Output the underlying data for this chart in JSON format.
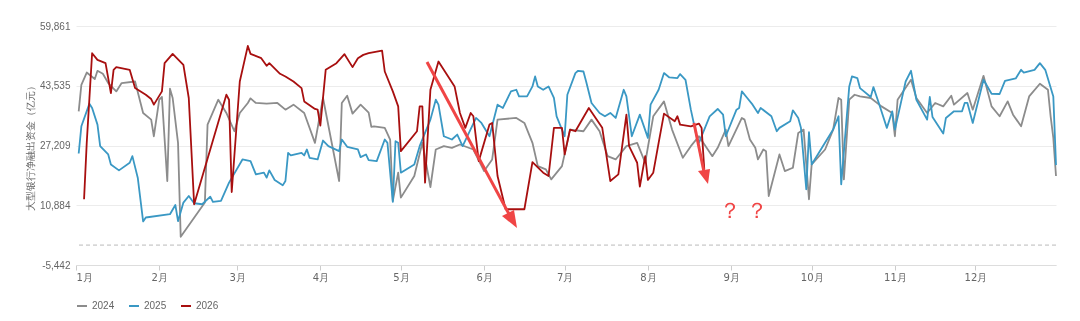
{
  "chart_data": {
    "type": "line",
    "ylabel": "大型银行净融出资金（亿元）",
    "legend": "bottom",
    "grid": "y",
    "line_style": "solid",
    "ylim": [
      -5442,
      59861
    ],
    "yticks": [
      {
        "value": -5442,
        "label": "-5,442"
      },
      {
        "value": 10884,
        "label": "10,884"
      },
      {
        "value": 27209,
        "label": "27,209"
      },
      {
        "value": 43535,
        "label": "43,535"
      },
      {
        "value": 59861,
        "label": "59,861"
      }
    ],
    "xlim": [
      "--01-01",
      "--12-31"
    ],
    "xticks": [
      {
        "value": "--01-01",
        "label": "1月"
      },
      {
        "value": "--02-01",
        "label": "2月"
      },
      {
        "value": "--03-01",
        "label": "3月"
      },
      {
        "value": "--04-01",
        "label": "4月"
      },
      {
        "value": "--05-01",
        "label": "5月"
      },
      {
        "value": "--06-01",
        "label": "6月"
      },
      {
        "value": "--07-01",
        "label": "7月"
      },
      {
        "value": "--08-01",
        "label": "8月"
      },
      {
        "value": "--09-01",
        "label": "9月"
      },
      {
        "value": "--10-01",
        "label": "10月"
      },
      {
        "value": "--11-01",
        "label": "11月"
      },
      {
        "value": "--12-01",
        "label": "12月"
      }
    ],
    "ref_lines": [
      {
        "axis": "y",
        "value": 0,
        "color": "#bbbbbb",
        "line_style": "dashed"
      }
    ],
    "annotations": [
      "？",
      "？"
    ],
    "series": [
      {
        "name": "2024",
        "color": "#8c8c8c",
        "x": [
          "--01-02",
          "--01-03",
          "--01-05",
          "--01-08",
          "--01-09",
          "--01-11",
          "--01-13",
          "--01-16",
          "--01-18",
          "--01-23",
          "--01-26",
          "--01-29",
          "--01-30",
          "--02-01",
          "--02-02",
          "--02-04",
          "--02-05",
          "--02-06",
          "--02-08",
          "--02-09",
          "--02-18",
          "--02-19",
          "--02-23",
          "--02-26",
          "--02-29",
          "--03-02",
          "--03-05",
          "--03-06",
          "--03-08",
          "--03-12",
          "--03-16",
          "--03-19",
          "--03-22",
          "--03-26",
          "--03-30",
          "--04-02",
          "--04-08",
          "--04-09",
          "--04-11",
          "--04-13",
          "--04-16",
          "--04-19",
          "--04-20",
          "--04-21",
          "--04-25",
          "--04-27",
          "--04-28",
          "--04-30",
          "--05-01",
          "--05-06",
          "--05-09",
          "--05-12",
          "--05-14",
          "--05-17",
          "--05-20",
          "--05-23",
          "--05-28",
          "--06-01",
          "--06-04",
          "--06-06",
          "--06-13",
          "--06-16",
          "--06-19",
          "--06-21",
          "--06-24",
          "--06-26",
          "--06-30",
          "--07-03",
          "--07-08",
          "--07-11",
          "--07-14",
          "--07-17",
          "--07-20",
          "--07-24",
          "--07-28",
          "--07-31",
          "--08-03",
          "--08-07",
          "--08-10",
          "--08-14",
          "--08-17",
          "--08-20",
          "--08-25",
          "--08-27",
          "--08-30",
          "--08-31",
          "--09-05",
          "--09-06",
          "--09-08",
          "--09-10",
          "--09-11",
          "--09-13",
          "--09-14",
          "--09-15",
          "--09-19",
          "--09-21",
          "--09-24",
          "--09-26",
          "--09-28",
          "--09-30",
          "--10-01",
          "--10-06",
          "--10-09",
          "--10-11",
          "--10-12",
          "--10-13",
          "--10-15",
          "--10-17",
          "--10-19",
          "--10-23",
          "--10-27",
          "--10-31",
          "--11-01",
          "--11-02",
          "--11-07",
          "--11-09",
          "--11-13",
          "--11-16",
          "--11-19",
          "--11-22",
          "--11-23",
          "--11-28",
          "--11-30",
          "--12-04",
          "--12-07",
          "--12-10",
          "--12-13",
          "--12-15",
          "--12-18",
          "--12-21",
          "--12-25",
          "--12-28",
          "--12-29",
          "--12-30",
          "--12-31"
        ],
        "values": [
          36550,
          43800,
          47150,
          45360,
          47620,
          46800,
          44270,
          41990,
          44270,
          44700,
          36100,
          34280,
          29740,
          39720,
          40460,
          17500,
          42720,
          40190,
          27940,
          2260,
          11620,
          32920,
          39720,
          36100,
          31100,
          36100,
          38830,
          40100,
          38830,
          38640,
          38830,
          37000,
          38370,
          36100,
          27940,
          40190,
          17500,
          38830,
          40810,
          35920,
          38370,
          36190,
          32300,
          32460,
          32030,
          28840,
          12060,
          19780,
          12970,
          18870,
          27940,
          15870,
          26120,
          27030,
          26580,
          27480,
          26120,
          20220,
          23400,
          34280,
          34740,
          33380,
          27940,
          21580,
          20680,
          17960,
          21580,
          31560,
          31100,
          34280,
          31100,
          24300,
          23400,
          27030,
          27940,
          22500,
          35190,
          39260,
          31560,
          23850,
          27030,
          29740,
          24300,
          26580,
          31560,
          27030,
          34740,
          34280,
          28840,
          26580,
          23400,
          26120,
          25660,
          13410,
          24760,
          20220,
          21130,
          30650,
          31560,
          12510,
          22040,
          26120,
          31560,
          40190,
          39720,
          17960,
          39720,
          41080,
          40620,
          40190,
          37900,
          36100,
          29740,
          39720,
          45170,
          40190,
          36100,
          38830,
          37900,
          40810,
          38370,
          41540,
          37000,
          46250,
          37900,
          35190,
          39260,
          35640,
          32460,
          40620,
          44080,
          42440,
          35190,
          29300,
          18870
        ]
      },
      {
        "name": "2025",
        "color": "#3a98c4",
        "x": [
          "--01-02",
          "--01-03",
          "--01-06",
          "--01-07",
          "--01-09",
          "--01-10",
          "--01-13",
          "--01-14",
          "--01-17",
          "--01-21",
          "--01-22",
          "--01-24",
          "--01-26",
          "--01-27",
          "--02-05",
          "--02-07",
          "--02-08",
          "--02-10",
          "--02-12",
          "--02-14",
          "--02-17",
          "--02-20",
          "--02-21",
          "--02-24",
          "--02-27",
          "--03-03",
          "--03-06",
          "--03-08",
          "--03-11",
          "--03-12",
          "--03-13",
          "--03-15",
          "--03-18",
          "--03-19",
          "--03-20",
          "--03-21",
          "--03-25",
          "--03-26",
          "--03-27",
          "--03-28",
          "--03-31",
          "--04-02",
          "--04-04",
          "--04-08",
          "--04-09",
          "--04-11",
          "--04-15",
          "--04-16",
          "--04-18",
          "--04-19",
          "--04-22",
          "--04-25",
          "--04-26",
          "--04-28",
          "--04-29",
          "--04-30",
          "--05-01",
          "--05-06",
          "--05-08",
          "--05-12",
          "--05-14",
          "--05-15",
          "--05-17",
          "--05-20",
          "--05-22",
          "--05-24",
          "--05-29",
          "--05-31",
          "--06-03",
          "--06-06",
          "--06-08",
          "--06-11",
          "--06-13",
          "--06-14",
          "--06-17",
          "--06-19",
          "--06-20",
          "--06-21",
          "--06-23",
          "--06-25",
          "--06-27",
          "--06-28",
          "--07-01",
          "--07-02",
          "--07-05",
          "--07-06",
          "--07-08",
          "--07-09",
          "--07-11",
          "--07-14",
          "--07-16",
          "--07-18",
          "--07-20",
          "--07-23",
          "--07-24",
          "--07-26",
          "--07-29",
          "--08-01",
          "--08-02",
          "--08-05",
          "--08-07",
          "--08-09",
          "--08-12",
          "--08-13",
          "--08-15",
          "--08-17",
          "--08-19",
          "--08-20",
          "--08-21",
          "--08-24",
          "--08-27",
          "--08-29",
          "--08-30",
          "--09-03",
          "--09-04",
          "--09-05",
          "--09-07",
          "--09-09",
          "--09-11",
          "--09-12",
          "--09-16",
          "--09-18",
          "--09-19",
          "--09-23",
          "--09-24",
          "--09-26",
          "--09-27",
          "--09-29",
          "--09-30",
          "--10-01",
          "--10-09",
          "--10-11",
          "--10-12",
          "--10-15",
          "--10-16",
          "--10-18",
          "--10-19",
          "--10-23",
          "--10-24",
          "--10-26",
          "--10-29",
          "--10-31",
          "--11-01",
          "--11-05",
          "--11-07",
          "--11-09",
          "--11-13",
          "--11-14",
          "--11-15",
          "--11-19",
          "--11-20",
          "--11-23",
          "--11-26",
          "--11-27",
          "--11-28",
          "--11-30",
          "--12-04",
          "--12-07",
          "--12-10",
          "--12-12",
          "--12-16",
          "--12-18",
          "--12-19",
          "--12-23",
          "--12-25",
          "--12-27",
          "--12-30",
          "--12-31"
        ],
        "values": [
          25030,
          32460,
          38640,
          37470,
          32920,
          27030,
          24760,
          22040,
          20410,
          22500,
          24300,
          18420,
          6450,
          7540,
          8430,
          10970,
          6530,
          11620,
          13410,
          11430,
          11160,
          13250,
          11780,
          12060,
          17060,
          23400,
          22940,
          19320,
          19780,
          18420,
          20410,
          17780,
          16320,
          17500,
          25200,
          24490,
          25200,
          24490,
          26120,
          23850,
          23400,
          28570,
          27030,
          25660,
          28840,
          26850,
          26120,
          24030,
          24760,
          23220,
          22940,
          28840,
          27940,
          11780,
          28380,
          27940,
          19780,
          22040,
          27030,
          34280,
          39720,
          38370,
          29740,
          28840,
          30200,
          27030,
          34740,
          33380,
          29740,
          38370,
          37470,
          41990,
          42440,
          40620,
          40620,
          43350,
          46070,
          43350,
          42440,
          43350,
          40190,
          35190,
          29740,
          41080,
          47000,
          47620,
          47430,
          44700,
          38830,
          36100,
          35190,
          36100,
          34740,
          42440,
          40620,
          29740,
          35640,
          29300,
          38370,
          42440,
          47000,
          45800,
          45630,
          46720,
          45170,
          37000,
          30200,
          27940,
          29740,
          35190,
          37190,
          35640,
          29740,
          37000,
          37470,
          41990,
          40190,
          38370,
          36100,
          37470,
          35190,
          31100,
          32030,
          33830,
          36820,
          34740,
          32030,
          15240,
          30830,
          22040,
          31560,
          35190,
          16600,
          43350,
          46070,
          45630,
          42900,
          40460,
          43170,
          38830,
          32030,
          36550,
          31560,
          44700,
          47620,
          39720,
          34280,
          40460,
          35010,
          30470,
          34740,
          36550,
          36550,
          38830,
          38830,
          33380,
          45170,
          41350,
          41280,
          44890,
          45520,
          47890,
          47150,
          47890,
          49710,
          47890,
          40620,
          21850
        ]
      },
      {
        "name": "2026",
        "color": "#a80f0f",
        "x": [
          "--01-04",
          "--01-05",
          "--01-07",
          "--01-09",
          "--01-12",
          "--01-14",
          "--01-15",
          "--01-16",
          "--01-21",
          "--01-23",
          "--01-27",
          "--01-29",
          "--01-30",
          "--02-02",
          "--02-03",
          "--02-06",
          "--02-10",
          "--02-12",
          "--02-14",
          "--02-26",
          "--02-27",
          "--02-28",
          "--03-02",
          "--03-05",
          "--03-06",
          "--03-10",
          "--03-12",
          "--03-13",
          "--03-17",
          "--03-19",
          "--03-22",
          "--03-25",
          "--03-26",
          "--03-30",
          "--03-31",
          "--04-01",
          "--04-03",
          "--04-07",
          "--04-10",
          "--04-13",
          "--04-15",
          "--04-17",
          "--04-19",
          "--04-24",
          "--04-25",
          "--04-28",
          "--04-30",
          "--05-01",
          "--05-07",
          "--05-08",
          "--05-09",
          "--05-10",
          "--05-12",
          "--05-15",
          "--05-21",
          "--05-23",
          "--05-25",
          "--05-27",
          "--05-28",
          "--05-30",
          "--06-03",
          "--06-04",
          "--06-06",
          "--06-09",
          "--06-16",
          "--06-19",
          "--06-23",
          "--06-25",
          "--06-27",
          "--06-30",
          "--07-01",
          "--07-03",
          "--07-05",
          "--07-10",
          "--07-15",
          "--07-18",
          "--07-21",
          "--07-24",
          "--07-25",
          "--07-28",
          "--07-29",
          "--07-31",
          "--08-01",
          "--08-03",
          "--08-05",
          "--08-07",
          "--08-11",
          "--08-12",
          "--08-13",
          "--08-17",
          "--08-20",
          "--08-21",
          "--08-22"
        ],
        "values": [
          12510,
          27940,
          52430,
          50610,
          49710,
          41540,
          47890,
          48620,
          47890,
          42900,
          41080,
          39900,
          38370,
          41990,
          49710,
          52240,
          49250,
          40190,
          11160,
          41080,
          39720,
          14500,
          44700,
          54420,
          52240,
          51070,
          48980,
          49710,
          46800,
          46070,
          44700,
          42900,
          39260,
          37190,
          37000,
          32650,
          47890,
          49710,
          52160,
          48620,
          51070,
          51970,
          52430,
          53140,
          47430,
          41990,
          37900,
          25660,
          31100,
          37900,
          37900,
          17060,
          42440,
          50150,
          43350,
          36100,
          32030,
          36100,
          35190,
          22940,
          32920,
          33380,
          18870,
          9790,
          9790,
          22670,
          19780,
          18870,
          32030,
          32030,
          24760,
          31560,
          31100,
          37470,
          32030,
          17500,
          19320,
          35640,
          27030,
          22500,
          15970,
          24300,
          17780,
          19780,
          27940,
          35920,
          33830,
          35190,
          32920,
          32460,
          33200,
          32030,
          20680
        ]
      }
    ]
  }
}
